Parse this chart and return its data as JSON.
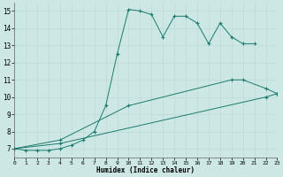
{
  "xlabel": "Humidex (Indice chaleur)",
  "xlim": [
    0,
    23
  ],
  "ylim": [
    6.5,
    15.5
  ],
  "xticks": [
    0,
    1,
    2,
    3,
    4,
    5,
    6,
    7,
    8,
    9,
    10,
    11,
    12,
    13,
    14,
    15,
    16,
    17,
    18,
    19,
    20,
    21,
    22,
    23
  ],
  "yticks": [
    7,
    8,
    9,
    10,
    11,
    12,
    13,
    14,
    15
  ],
  "bg_color": "#cde8e4",
  "line_color": "#1a7a6e",
  "line1_x": [
    0,
    1,
    2,
    3,
    4,
    5,
    6,
    7,
    8,
    9,
    10,
    11,
    12,
    13,
    14,
    15,
    16,
    17,
    18,
    19,
    20,
    21
  ],
  "line1_y": [
    7.0,
    6.9,
    6.9,
    6.9,
    7.0,
    7.2,
    7.5,
    8.0,
    9.5,
    12.5,
    15.1,
    15.0,
    14.8,
    13.5,
    14.7,
    14.7,
    14.3,
    13.1,
    14.3,
    13.5,
    13.1,
    13.1
  ],
  "line2_x": [
    0,
    4,
    10,
    19,
    20,
    22,
    23
  ],
  "line2_y": [
    7.0,
    7.5,
    9.5,
    11.0,
    11.0,
    10.5,
    10.2
  ],
  "line3_x": [
    0,
    4,
    22,
    23
  ],
  "line3_y": [
    7.0,
    7.3,
    10.0,
    10.2
  ],
  "figsize": [
    3.2,
    2.0
  ],
  "dpi": 100
}
